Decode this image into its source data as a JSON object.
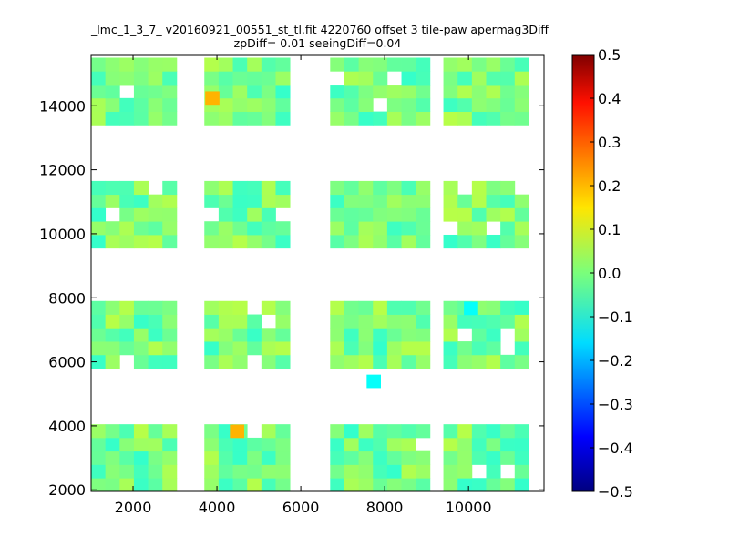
{
  "chart_data": {
    "type": "heatmap",
    "title": "_lmc_1_3_7_ v20160921_00551_st_tl.fit 4220760 offset 3 tile-paw apermag3Diff",
    "subtitle": "zpDiff= 0.01 seeingDiff=0.04",
    "xlim": [
      1000,
      11800
    ],
    "ylim": [
      1950,
      15600
    ],
    "x_ticks": [
      2000,
      4000,
      6000,
      8000,
      10000
    ],
    "y_ticks": [
      2000,
      4000,
      6000,
      8000,
      10000,
      12000,
      14000
    ],
    "cell_size": [
      340,
      420
    ],
    "colormap": "jet",
    "color_range": [
      -0.5,
      0.5
    ],
    "colorbar_ticks": [
      "0.5",
      "0.4",
      "0.3",
      "0.2",
      "0.1",
      "0.0",
      "−0.1",
      "−0.2",
      "−0.3",
      "−0.4",
      "−0.5"
    ],
    "colorbar_tick_values": [
      0.5,
      0.4,
      0.3,
      0.2,
      0.1,
      0.0,
      -0.1,
      -0.2,
      -0.3,
      -0.4,
      -0.5
    ],
    "grid": false,
    "x_blocks": [
      {
        "start": 1000,
        "count": 6
      },
      {
        "start": 3700,
        "count": 6
      },
      {
        "start": 6700,
        "count": 7
      },
      {
        "start": 9400,
        "count": 6
      }
    ],
    "y_blocks": [
      {
        "start": 1950,
        "count": 5
      },
      {
        "start": 5800,
        "count": 5
      },
      {
        "start": 9550,
        "count": 5
      },
      {
        "start": 13400,
        "count": 5
      }
    ],
    "cell_values": "random-moderate: most cells between -0.07 and 0.05",
    "highlight_cells": [
      {
        "x": 3890,
        "y": 14240,
        "value": 0.2
      },
      {
        "x": 4480,
        "y": 3830,
        "value": 0.2
      },
      {
        "x": 7740,
        "y": 5390,
        "value": -0.12
      },
      {
        "x": 10060,
        "y": 7670,
        "value": -0.12
      }
    ]
  }
}
